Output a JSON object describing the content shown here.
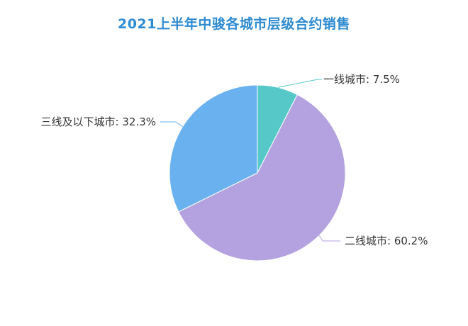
{
  "chart_data": {
    "type": "pie",
    "title": "2021上半年中骏各城市层级合约销售",
    "series": [
      {
        "name": "一线城市",
        "value": 7.5,
        "color": "#57c8c8"
      },
      {
        "name": "二线城市",
        "value": 60.2,
        "color": "#b4a2e0"
      },
      {
        "name": "三线及以下城市",
        "value": 32.3,
        "color": "#69b2ef"
      }
    ],
    "labels": [
      "一线城市: 7.5%",
      "二线城市: 60.2%",
      "三线及以下城市: 32.3%"
    ]
  }
}
